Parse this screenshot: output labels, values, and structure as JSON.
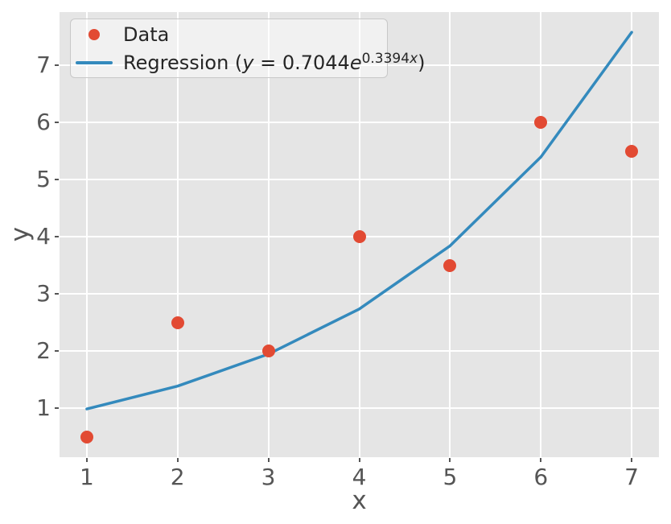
{
  "figure": {
    "xlabel": "x",
    "ylabel": "y"
  },
  "legend": {
    "items": [
      {
        "label": "Data",
        "marker": "circle",
        "color": "#E24A33"
      },
      {
        "label": "Regression (y = 0.7044e^0.3394x)",
        "marker": "line",
        "color": "#348ABD",
        "parts": {
          "prefix": "Regression (",
          "y_var": "y",
          "equals_coeff": " = 0.7044",
          "e_var": "e",
          "exp_coeff": "0.3394",
          "exp_var": "x",
          "close": ")"
        }
      }
    ]
  },
  "colors": {
    "plot_background": "#e5e5e5",
    "grid": "#ffffff",
    "scatter": "#E24A33",
    "regression_line": "#348ABD",
    "tick_text": "#555555",
    "legend_text": "#262626"
  },
  "chart_data": {
    "type": "scatter",
    "title": "",
    "xlabel": "x",
    "ylabel": "y",
    "xticks": [
      1,
      2,
      3,
      4,
      5,
      6,
      7
    ],
    "yticks": [
      1,
      2,
      3,
      4,
      5,
      6,
      7
    ],
    "xlim": [
      0.7,
      7.3
    ],
    "ylim": [
      0.146,
      7.933
    ],
    "grid": true,
    "legend_position": "upper left",
    "style": "ggplot",
    "series": [
      {
        "name": "Data",
        "type": "scatter",
        "color": "#E24A33",
        "x": [
          1,
          2,
          3,
          4,
          5,
          6,
          7
        ],
        "y": [
          0.5,
          2.5,
          2.0,
          4.0,
          3.5,
          6.0,
          5.5
        ]
      },
      {
        "name": "Regression (y = 0.7044e^0.3394x)",
        "type": "line",
        "color": "#348ABD",
        "equation": "y = 0.7044 * e^(0.3394x)",
        "x": [
          1,
          2,
          3,
          4,
          5,
          6,
          7
        ],
        "y": [
          0.989,
          1.389,
          1.95,
          2.738,
          3.844,
          5.398,
          7.579
        ]
      }
    ]
  }
}
